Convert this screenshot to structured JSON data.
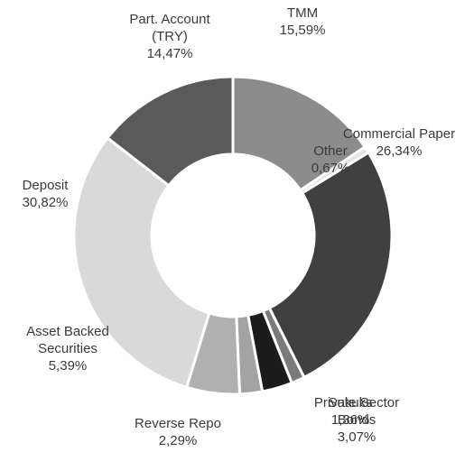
{
  "chart_data": {
    "type": "donut",
    "categories": [
      "TMM",
      "Other",
      "Commercial Paper",
      "Sukuks",
      "Private Sector Bonds",
      "Reverse Repo",
      "Asset Backed Securities",
      "Deposit",
      "Part. Account (TRY)"
    ],
    "values": [
      15.59,
      0.67,
      26.34,
      1.36,
      3.07,
      2.29,
      5.39,
      30.82,
      14.47
    ],
    "value_labels": [
      "15,59%",
      "0,67%",
      "26,34%",
      "1,36%",
      "3,07%",
      "2,29%",
      "5,39%",
      "30,82%",
      "14,47%"
    ],
    "colors": [
      "#8c8c8c",
      "#e3e3e3",
      "#404040",
      "#7a7a7a",
      "#1c1c1c",
      "#a3a3a3",
      "#b0b0b0",
      "#d9d9d9",
      "#5a5a5a"
    ]
  }
}
